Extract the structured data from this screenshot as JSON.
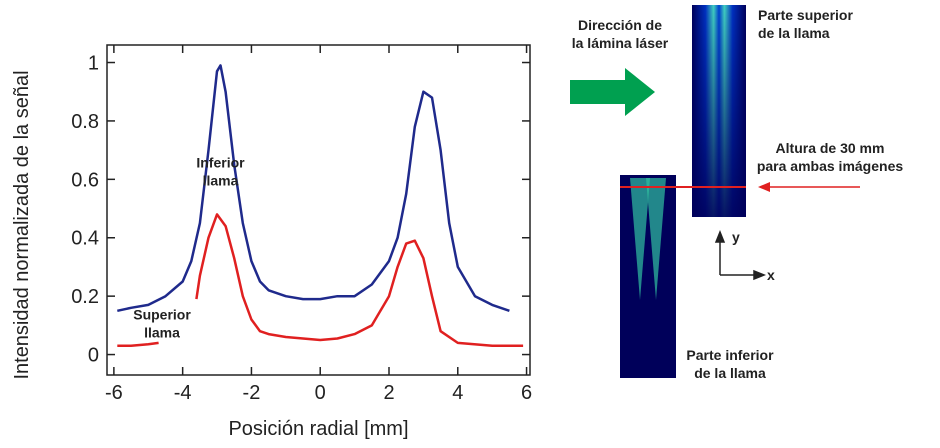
{
  "chart_data": {
    "type": "line",
    "xlabel": "Posición radial [mm]",
    "ylabel": "Intensidad normalizada de la señal",
    "xlim": [
      -6.2,
      6.1
    ],
    "ylim": [
      -0.07,
      1.06
    ],
    "xticks": [
      -6,
      -4,
      -2,
      0,
      2,
      4,
      6
    ],
    "yticks": [
      0,
      0.2,
      0.4,
      0.6,
      0.8,
      1
    ],
    "series": [
      {
        "color": "#1f2a8c",
        "x": [
          -5.9,
          -5.5,
          -5,
          -4.5,
          -4,
          -3.75,
          -3.5,
          -3.25,
          -3,
          -2.9,
          -2.75,
          -2.5,
          -2.25,
          -2,
          -1.75,
          -1.5,
          -1,
          -0.5,
          0,
          0.5,
          1,
          1.5,
          2,
          2.25,
          2.5,
          2.75,
          3,
          3.25,
          3.5,
          3.75,
          4,
          4.5,
          5,
          5.5
        ],
        "values": [
          0.15,
          0.16,
          0.17,
          0.2,
          0.25,
          0.32,
          0.45,
          0.7,
          0.97,
          0.99,
          0.9,
          0.65,
          0.45,
          0.32,
          0.25,
          0.22,
          0.2,
          0.19,
          0.19,
          0.2,
          0.2,
          0.24,
          0.32,
          0.4,
          0.55,
          0.78,
          0.9,
          0.88,
          0.7,
          0.45,
          0.3,
          0.2,
          0.17,
          0.15
        ]
      },
      {
        "color": "#e02020",
        "x": [
          -5.9,
          -5.5,
          -5,
          -4.7,
          -4.2,
          -3.6,
          -3.5,
          -3.25,
          -3,
          -2.75,
          -2.5,
          -2.25,
          -2,
          -1.75,
          -1.5,
          -1,
          -0.5,
          0,
          0.5,
          1,
          1.5,
          2,
          2.25,
          2.5,
          2.75,
          3,
          3.25,
          3.5,
          4,
          5,
          5.9
        ],
        "values": [
          0.03,
          0.03,
          0.035,
          0.04,
          null,
          0.19,
          0.27,
          0.4,
          0.48,
          0.44,
          0.33,
          0.2,
          0.12,
          0.08,
          0.07,
          0.06,
          0.055,
          0.05,
          0.055,
          0.07,
          0.1,
          0.2,
          0.3,
          0.38,
          0.39,
          0.33,
          0.2,
          0.08,
          0.04,
          0.03,
          0.03
        ]
      }
    ],
    "annotations": [
      {
        "lines": [
          "Inferior",
          "llama"
        ],
        "x": -2.9,
        "y": 0.64
      },
      {
        "lines": [
          "Superior",
          "llama"
        ],
        "x": -4.6,
        "y": 0.12
      }
    ]
  },
  "figure": {
    "laser_direction": [
      "Dirección de",
      "la lámina láser"
    ],
    "top_label": [
      "Parte superior",
      "de la llama"
    ],
    "height_label": [
      "Altura de 30 mm",
      "para ambas imágenes"
    ],
    "bottom_label": [
      "Parte inferior",
      "de la llama"
    ],
    "axis_y": "y",
    "axis_x": "x"
  }
}
